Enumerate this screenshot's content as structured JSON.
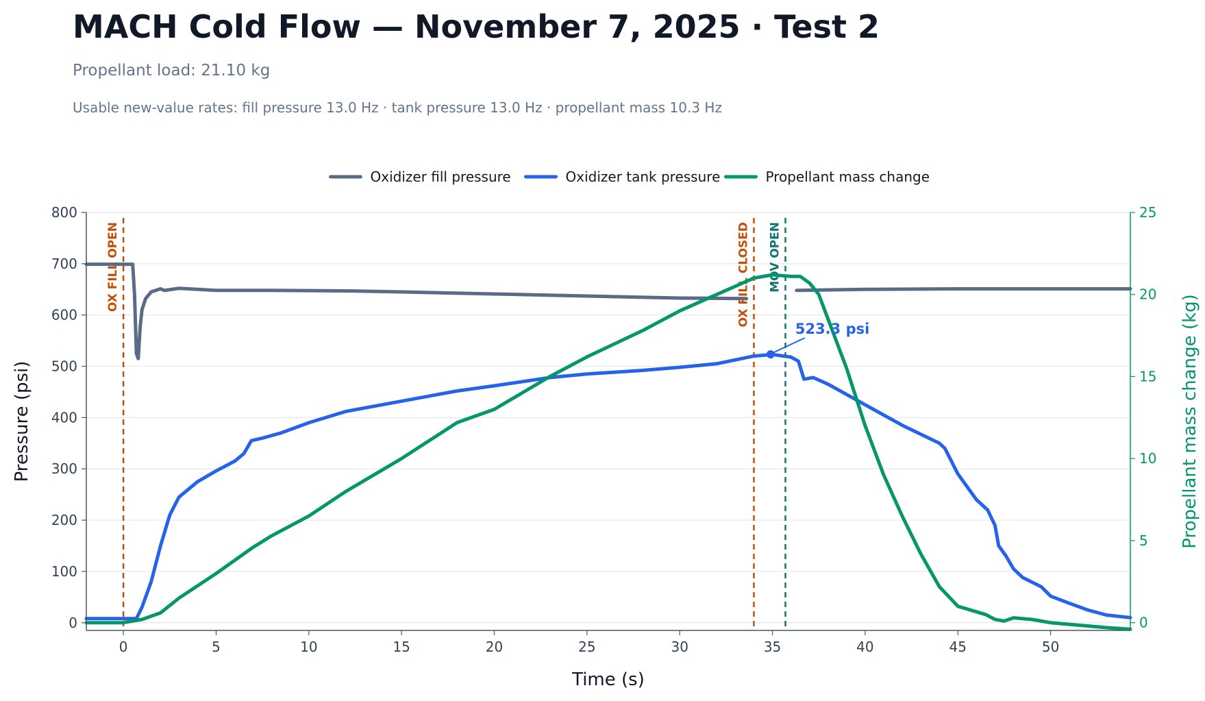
{
  "header": {
    "title": "MACH Cold Flow — November 7, 2025 · Test 2",
    "subtitle": "Propellant load: 21.10 kg",
    "rates": "Usable new-value rates: fill pressure 13.0 Hz · tank pressure 13.0 Hz · propellant mass 10.3 Hz"
  },
  "chart_data": {
    "type": "line",
    "xlabel": "Time (s)",
    "ylabel": "Pressure (psi)",
    "y2label": "Propellant mass change (kg)",
    "xlim": [
      -2,
      54.3
    ],
    "ylim": [
      -15,
      800
    ],
    "y2lim": [
      -0.47,
      25
    ],
    "xticks": [
      "0",
      "5",
      "10",
      "15",
      "20",
      "25",
      "30",
      "35",
      "40",
      "45",
      "50"
    ],
    "yticks": [
      "0",
      "100",
      "200",
      "300",
      "400",
      "500",
      "600",
      "700",
      "800"
    ],
    "y2ticks": [
      "0",
      "5",
      "10",
      "15",
      "20",
      "25"
    ],
    "grid": true,
    "legend_position": "top-center",
    "colors": {
      "fill": "#5b6b85",
      "tank": "#2563eb",
      "mass": "#059669",
      "ox_event": "#c2500a",
      "mov_event": "#0f766e",
      "axis": "#475569",
      "grid": "#e2e8f0",
      "text": "#334155"
    },
    "series": [
      {
        "name": "Oxidizer fill pressure",
        "axis": "left",
        "color": "#5b6b85",
        "x": [
          -2,
          0,
          0.5,
          0.6,
          0.7,
          0.8,
          0.9,
          1.0,
          1.2,
          1.5,
          2.0,
          2.2,
          3.0,
          5.0,
          8.0,
          12.0,
          15.0,
          20.0,
          25.0,
          30.0,
          33.6
        ],
        "y": [
          699,
          699,
          699,
          640,
          525,
          515,
          575,
          610,
          632,
          645,
          651,
          648,
          652,
          648,
          648,
          647,
          645,
          641,
          637,
          633,
          632
        ]
      },
      {
        "name": "Oxidizer fill pressure",
        "axis": "left",
        "color": "#5b6b85",
        "x": [
          36.3,
          40,
          45,
          50,
          54.3
        ],
        "y": [
          648,
          650,
          651,
          651,
          651
        ]
      },
      {
        "name": "Oxidizer tank pressure",
        "axis": "left",
        "color": "#2563eb",
        "x": [
          -2,
          0,
          0.7,
          1.0,
          1.5,
          2.0,
          2.5,
          3.0,
          4.0,
          5.0,
          6.0,
          6.5,
          6.9,
          7.5,
          8.5,
          10,
          12,
          15,
          18,
          20,
          23,
          25,
          28,
          30,
          32,
          34,
          35,
          36,
          36.4,
          36.7,
          37.2,
          38,
          40,
          42,
          44,
          44.3,
          45,
          46,
          46.6,
          47,
          47.2,
          47.6,
          48,
          48.5,
          49.5,
          50,
          51,
          52,
          53,
          54.3
        ],
        "y": [
          8,
          8,
          8,
          30,
          80,
          150,
          210,
          245,
          275,
          296,
          315,
          330,
          355,
          360,
          370,
          390,
          412,
          432,
          452,
          462,
          478,
          485,
          492,
          498,
          505,
          520,
          523,
          518,
          510,
          475,
          478,
          465,
          425,
          385,
          350,
          340,
          290,
          240,
          220,
          190,
          150,
          130,
          105,
          88,
          70,
          52,
          38,
          25,
          15,
          10
        ]
      },
      {
        "name": "Propellant mass change",
        "axis": "right",
        "color": "#059669",
        "x": [
          -2,
          0,
          1.0,
          2.0,
          3.0,
          5.0,
          7.0,
          8.0,
          10.0,
          12.0,
          15.0,
          18.0,
          20.0,
          23.0,
          25.0,
          28.0,
          30.0,
          32.0,
          34.0,
          35.0,
          36.0,
          36.5,
          37.0,
          37.5,
          38.0,
          39.0,
          40.0,
          41.0,
          42.0,
          43.0,
          44.0,
          45.0,
          46.5,
          47.0,
          47.5,
          48.0,
          49.0,
          50.0,
          51.0,
          52.0,
          53.0,
          54.3
        ],
        "y": [
          0.0,
          0.0,
          0.2,
          0.6,
          1.5,
          3.0,
          4.6,
          5.3,
          6.5,
          8.0,
          10.0,
          12.2,
          13.0,
          15.0,
          16.2,
          17.8,
          19.0,
          20.0,
          21.0,
          21.2,
          21.1,
          21.1,
          20.7,
          20.0,
          18.5,
          15.5,
          12.0,
          9.0,
          6.5,
          4.2,
          2.2,
          1.0,
          0.5,
          0.2,
          0.1,
          0.3,
          0.2,
          0.0,
          -0.1,
          -0.2,
          -0.3,
          -0.4
        ]
      }
    ],
    "events": [
      {
        "label": "OX FILL OPEN",
        "x": 0,
        "color": "#c2500a"
      },
      {
        "label": "OX FILL CLOSED",
        "x": 34.0,
        "color": "#c2500a"
      },
      {
        "label": "MOV OPEN",
        "x": 35.7,
        "color": "#0f766e"
      }
    ],
    "annotations": [
      {
        "text": "523.3 psi",
        "x": 34.9,
        "y": 523.3,
        "color": "#2563eb"
      }
    ]
  }
}
